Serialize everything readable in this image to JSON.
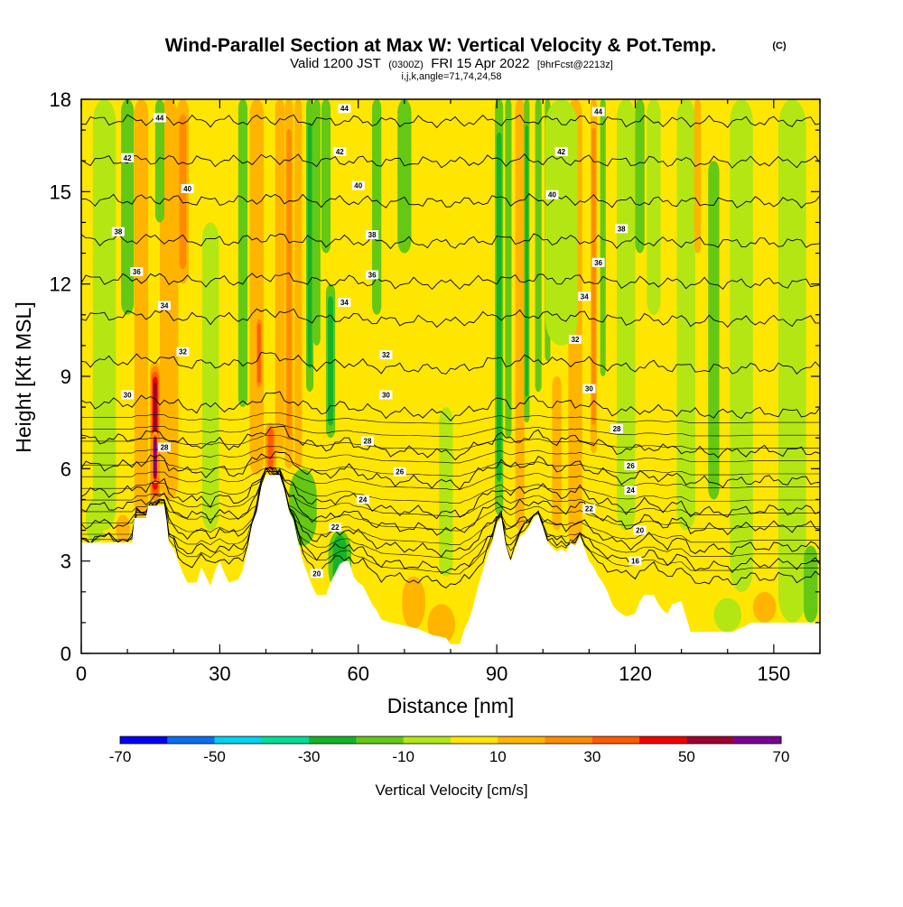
{
  "header": {
    "title": "Wind-Parallel Section at Max W: Vertical Velocity & Pot.Temp.",
    "copyright": "(C)",
    "valid_prefix": "Valid 1200 JST",
    "valid_utc": "(0300Z)",
    "valid_date": "FRI 15 Apr 2022",
    "forecast": "[9hrFcst@2213z]",
    "indices": "i,j,k,angle=71,74,24,58"
  },
  "colors": {
    "background_plot": "#ffe600",
    "terrain": "#ffffff",
    "contour_line": "#000000"
  },
  "chart_data": {
    "type": "heatmap",
    "xlabel": "Distance [nm]",
    "ylabel": "Height [Kft MSL]",
    "xlim": [
      0,
      160
    ],
    "ylim": [
      0,
      18
    ],
    "x_ticks": [
      "0",
      "30",
      "60",
      "90",
      "120",
      "150"
    ],
    "y_ticks": [
      "0",
      "3",
      "6",
      "9",
      "12",
      "15",
      "18"
    ],
    "x_minor_step": 10,
    "y_minor_step": 1,
    "colorbar": {
      "title": "Vertical Velocity [cm/s]",
      "min": -70,
      "max": 70,
      "step": 10,
      "labels": [
        "-70",
        "-50",
        "-30",
        "-10",
        "10",
        "30",
        "50",
        "70"
      ],
      "colors": [
        "#0000f5",
        "#0a6ef0",
        "#00d2f0",
        "#00dc96",
        "#14b428",
        "#64c814",
        "#b4e614",
        "#ffe600",
        "#ffb400",
        "#ff8c00",
        "#ff5a00",
        "#f00000",
        "#a00032",
        "#780096"
      ]
    },
    "terrain_profile": [
      [
        0,
        3.6
      ],
      [
        2,
        3.6
      ],
      [
        8,
        3.6
      ],
      [
        8.5,
        3.6
      ],
      [
        11,
        3.6
      ],
      [
        11.5,
        4.4
      ],
      [
        14,
        4.4
      ],
      [
        14.5,
        4.8
      ],
      [
        18,
        4.8
      ],
      [
        18.5,
        4.3
      ],
      [
        19,
        3.6
      ],
      [
        20,
        3.4
      ],
      [
        21,
        3.0
      ],
      [
        22,
        2.6
      ],
      [
        23,
        2.3
      ],
      [
        25,
        2.3
      ],
      [
        26,
        2.8
      ],
      [
        27,
        2.5
      ],
      [
        28,
        2.2
      ],
      [
        29,
        2.7
      ],
      [
        30,
        3.0
      ],
      [
        31,
        2.6
      ],
      [
        32,
        2.3
      ],
      [
        34,
        2.4
      ],
      [
        35,
        2.7
      ],
      [
        36,
        3.4
      ],
      [
        37,
        4.2
      ],
      [
        38,
        4.6
      ],
      [
        39,
        5.4
      ],
      [
        40,
        5.8
      ],
      [
        43,
        5.8
      ],
      [
        44,
        5.3
      ],
      [
        45,
        4.6
      ],
      [
        46,
        4.3
      ],
      [
        47,
        3.6
      ],
      [
        48,
        3.0
      ],
      [
        49,
        2.6
      ],
      [
        50,
        2.2
      ],
      [
        51,
        1.9
      ],
      [
        53,
        1.9
      ],
      [
        54,
        2.3
      ],
      [
        55,
        2.6
      ],
      [
        56,
        2.9
      ],
      [
        57,
        3.0
      ],
      [
        58,
        3.0
      ],
      [
        59,
        2.5
      ],
      [
        60,
        2.3
      ],
      [
        61,
        2.2
      ],
      [
        62,
        1.9
      ],
      [
        63,
        1.6
      ],
      [
        64,
        1.4
      ],
      [
        65,
        1.1
      ],
      [
        67,
        1.0
      ],
      [
        70,
        0.9
      ],
      [
        73,
        0.8
      ],
      [
        76,
        0.6
      ],
      [
        79,
        0.5
      ],
      [
        80,
        0.3
      ],
      [
        82,
        0.3
      ],
      [
        83,
        0.8
      ],
      [
        84,
        1.1
      ],
      [
        85,
        1.6
      ],
      [
        86,
        2.2
      ],
      [
        87,
        2.7
      ],
      [
        88,
        3.2
      ],
      [
        89,
        3.6
      ],
      [
        90,
        4.2
      ],
      [
        91,
        4.4
      ],
      [
        92,
        3.5
      ],
      [
        93,
        3.0
      ],
      [
        94,
        3.4
      ],
      [
        95,
        3.8
      ],
      [
        96,
        3.9
      ],
      [
        97,
        4.1
      ],
      [
        98,
        4.4
      ],
      [
        99,
        4.5
      ],
      [
        100,
        4.1
      ],
      [
        101,
        3.6
      ],
      [
        103,
        3.3
      ],
      [
        104,
        3.4
      ],
      [
        105,
        3.3
      ],
      [
        106,
        3.6
      ],
      [
        107,
        3.5
      ],
      [
        108,
        3.8
      ],
      [
        109,
        3.4
      ],
      [
        110,
        3.0
      ],
      [
        111,
        2.8
      ],
      [
        112,
        2.5
      ],
      [
        113,
        2.3
      ],
      [
        114,
        2.0
      ],
      [
        115,
        1.6
      ],
      [
        116,
        1.4
      ],
      [
        117,
        1.3
      ],
      [
        118,
        1.2
      ],
      [
        120,
        1.3
      ],
      [
        121,
        1.7
      ],
      [
        122,
        1.9
      ],
      [
        124,
        1.9
      ],
      [
        125,
        1.6
      ],
      [
        126,
        1.4
      ],
      [
        127,
        1.3
      ],
      [
        128,
        1.6
      ],
      [
        130,
        1.7
      ],
      [
        131,
        1.2
      ],
      [
        132,
        0.7
      ],
      [
        135,
        0.7
      ],
      [
        138,
        0.7
      ],
      [
        141,
        0.7
      ],
      [
        144,
        0.9
      ],
      [
        145,
        1.0
      ],
      [
        160,
        1.0
      ]
    ],
    "isentropes": [
      {
        "label": "16",
        "h": 3.0
      },
      {
        "label": "18",
        "h": 3.4
      },
      {
        "label": "20",
        "h": 3.9
      },
      {
        "label": "22",
        "h": 4.5
      },
      {
        "label": "24",
        "h": 5.0
      },
      {
        "label": "26",
        "h": 5.9
      },
      {
        "label": "28",
        "h": 6.8
      },
      {
        "label": "30",
        "h": 8.0
      },
      {
        "label": "32",
        "h": 9.4
      },
      {
        "label": "34",
        "h": 10.9
      },
      {
        "label": "36",
        "h": 12.1
      },
      {
        "label": "38",
        "h": 13.4
      },
      {
        "label": "40",
        "h": 14.7
      },
      {
        "label": "42",
        "h": 16.0
      },
      {
        "label": "44",
        "h": 17.3
      }
    ],
    "contour_labels": [
      {
        "text": "44",
        "x": 17,
        "y": 17.4
      },
      {
        "text": "44",
        "x": 57,
        "y": 17.7
      },
      {
        "text": "44",
        "x": 112,
        "y": 17.6
      },
      {
        "text": "42",
        "x": 10,
        "y": 16.1
      },
      {
        "text": "42",
        "x": 56,
        "y": 16.3
      },
      {
        "text": "42",
        "x": 104,
        "y": 16.3
      },
      {
        "text": "40",
        "x": 23,
        "y": 15.1
      },
      {
        "text": "40",
        "x": 60,
        "y": 15.2
      },
      {
        "text": "40",
        "x": 102,
        "y": 14.9
      },
      {
        "text": "38",
        "x": 8,
        "y": 13.7
      },
      {
        "text": "38",
        "x": 63,
        "y": 13.6
      },
      {
        "text": "38",
        "x": 117,
        "y": 13.8
      },
      {
        "text": "36",
        "x": 12,
        "y": 12.4
      },
      {
        "text": "36",
        "x": 63,
        "y": 12.3
      },
      {
        "text": "36",
        "x": 112,
        "y": 12.7
      },
      {
        "text": "34",
        "x": 18,
        "y": 11.3
      },
      {
        "text": "34",
        "x": 57,
        "y": 11.4
      },
      {
        "text": "34",
        "x": 109,
        "y": 11.6
      },
      {
        "text": "32",
        "x": 22,
        "y": 9.8
      },
      {
        "text": "32",
        "x": 66,
        "y": 9.7
      },
      {
        "text": "32",
        "x": 107,
        "y": 10.2
      },
      {
        "text": "30",
        "x": 10,
        "y": 8.4
      },
      {
        "text": "30",
        "x": 66,
        "y": 8.4
      },
      {
        "text": "30",
        "x": 110,
        "y": 8.6
      },
      {
        "text": "28",
        "x": 18,
        "y": 6.7
      },
      {
        "text": "28",
        "x": 62,
        "y": 6.9
      },
      {
        "text": "28",
        "x": 116,
        "y": 7.3
      },
      {
        "text": "26",
        "x": 69,
        "y": 5.9
      },
      {
        "text": "26",
        "x": 119,
        "y": 6.1
      },
      {
        "text": "24",
        "x": 61,
        "y": 5.0
      },
      {
        "text": "24",
        "x": 119,
        "y": 5.3
      },
      {
        "text": "22",
        "x": 55,
        "y": 4.1
      },
      {
        "text": "22",
        "x": 110,
        "y": 4.7
      },
      {
        "text": "20",
        "x": 51,
        "y": 2.6
      },
      {
        "text": "20",
        "x": 121,
        "y": 4.0
      },
      {
        "text": "16",
        "x": 120,
        "y": 3.0
      }
    ],
    "velocity_features": [
      {
        "x": 16,
        "w": 1.2,
        "y0": 4.8,
        "y1": 9.5,
        "v": 55
      },
      {
        "x": 16,
        "w": 0.7,
        "y0": 5.5,
        "y1": 7.2,
        "v": 68
      },
      {
        "x": 13,
        "w": 1.5,
        "y0": 4.0,
        "y1": 18,
        "v": 18
      },
      {
        "x": 19,
        "w": 2.0,
        "y0": 5.0,
        "y1": 18,
        "v": 22
      },
      {
        "x": 22,
        "w": 1.3,
        "y0": 12,
        "y1": 18,
        "v": 25
      },
      {
        "x": 10,
        "w": 1.4,
        "y0": 11,
        "y1": 18,
        "v": -12
      },
      {
        "x": 5,
        "w": 2.5,
        "y0": 4,
        "y1": 18,
        "v": -10
      },
      {
        "x": 17,
        "w": 1.0,
        "y0": 14,
        "y1": 18,
        "v": -22
      },
      {
        "x": 28,
        "w": 1.8,
        "y0": 4.0,
        "y1": 14,
        "v": -10
      },
      {
        "x": 35,
        "w": 1.0,
        "y0": 8.0,
        "y1": 18,
        "v": -15
      },
      {
        "x": 38,
        "w": 1.5,
        "y0": 5.8,
        "y1": 18,
        "v": 24
      },
      {
        "x": 38.5,
        "w": 0.8,
        "y0": 8.5,
        "y1": 11,
        "v": 42
      },
      {
        "x": 41,
        "w": 1.3,
        "y0": 5.8,
        "y1": 7.5,
        "v": 38
      },
      {
        "x": 43,
        "w": 1.0,
        "y0": 6.5,
        "y1": 18,
        "v": 12
      },
      {
        "x": 45,
        "w": 0.9,
        "y0": 6.0,
        "y1": 18,
        "v": 26
      },
      {
        "x": 47,
        "w": 0.8,
        "y0": 6.0,
        "y1": 18,
        "v": 22
      },
      {
        "x": 49.5,
        "w": 0.8,
        "y0": 8.5,
        "y1": 18,
        "v": -28
      },
      {
        "x": 51,
        "w": 0.8,
        "y0": 10,
        "y1": 18,
        "v": -22
      },
      {
        "x": 54,
        "w": 1.0,
        "y0": 7.0,
        "y1": 12,
        "v": -25
      },
      {
        "x": 53,
        "w": 1.0,
        "y0": 13,
        "y1": 18,
        "v": -14
      },
      {
        "x": 56,
        "w": 2.5,
        "y0": 2.0,
        "y1": 4.0,
        "v": -32
      },
      {
        "x": 48,
        "w": 3.0,
        "y0": 3.5,
        "y1": 6.0,
        "v": -12
      },
      {
        "x": 64,
        "w": 1.0,
        "y0": 11,
        "y1": 18,
        "v": -14
      },
      {
        "x": 70,
        "w": 1.5,
        "y0": 13,
        "y1": 18,
        "v": -12
      },
      {
        "x": 79,
        "w": 1.5,
        "y0": 2.5,
        "y1": 8.0,
        "v": -8
      },
      {
        "x": 78,
        "w": 3.0,
        "y0": 0.3,
        "y1": 1.6,
        "v": 20
      },
      {
        "x": 72,
        "w": 2.5,
        "y0": 0.8,
        "y1": 2.5,
        "v": 12
      },
      {
        "x": 90.5,
        "w": 0.9,
        "y0": 4.5,
        "y1": 18,
        "v": -28
      },
      {
        "x": 92.5,
        "w": 0.7,
        "y0": 7,
        "y1": 18,
        "v": -22
      },
      {
        "x": 95,
        "w": 1.0,
        "y0": 4.0,
        "y1": 18,
        "v": 12
      },
      {
        "x": 96.5,
        "w": 0.6,
        "y0": 7.5,
        "y1": 18,
        "v": -25
      },
      {
        "x": 99,
        "w": 0.7,
        "y0": 8.5,
        "y1": 18,
        "v": -15
      },
      {
        "x": 101,
        "w": 0.6,
        "y0": 9.5,
        "y1": 18,
        "v": -22
      },
      {
        "x": 103,
        "w": 1.0,
        "y0": 4.0,
        "y1": 9.0,
        "v": 14
      },
      {
        "x": 107,
        "w": 1.5,
        "y0": 3.5,
        "y1": 18,
        "v": 16
      },
      {
        "x": 111,
        "w": 0.7,
        "y0": 6.5,
        "y1": 18,
        "v": 30
      },
      {
        "x": 113,
        "w": 0.6,
        "y0": 9,
        "y1": 18,
        "v": -12
      },
      {
        "x": 104,
        "w": 3.5,
        "y0": 10,
        "y1": 18,
        "v": -8
      },
      {
        "x": 118,
        "w": 2.0,
        "y0": 4.0,
        "y1": 18,
        "v": -8
      },
      {
        "x": 121,
        "w": 1.0,
        "y0": 13,
        "y1": 18,
        "v": -22
      },
      {
        "x": 124,
        "w": 1.5,
        "y0": 11,
        "y1": 18,
        "v": -10
      },
      {
        "x": 131,
        "w": 2.0,
        "y0": 4.0,
        "y1": 18,
        "v": -10
      },
      {
        "x": 133.5,
        "w": 0.7,
        "y0": 13,
        "y1": 18,
        "v": 20
      },
      {
        "x": 137,
        "w": 1.2,
        "y0": 5.0,
        "y1": 16,
        "v": -11
      },
      {
        "x": 143,
        "w": 2.5,
        "y0": 2.0,
        "y1": 18,
        "v": -9
      },
      {
        "x": 154,
        "w": 3.0,
        "y0": 1.0,
        "y1": 18,
        "v": -10
      },
      {
        "x": 158,
        "w": 1.5,
        "y0": 1.0,
        "y1": 3.5,
        "v": -12
      },
      {
        "x": 148,
        "w": 2.5,
        "y0": 1.0,
        "y1": 2.0,
        "v": 12
      },
      {
        "x": 140,
        "w": 3.0,
        "y0": 0.7,
        "y1": 1.8,
        "v": -10
      },
      {
        "x": 3,
        "w": 2.0,
        "y0": 3.6,
        "y1": 5.0,
        "v": -10
      },
      {
        "x": 9,
        "w": 1.5,
        "y0": 3.6,
        "y1": 4.5,
        "v": 15
      }
    ]
  }
}
